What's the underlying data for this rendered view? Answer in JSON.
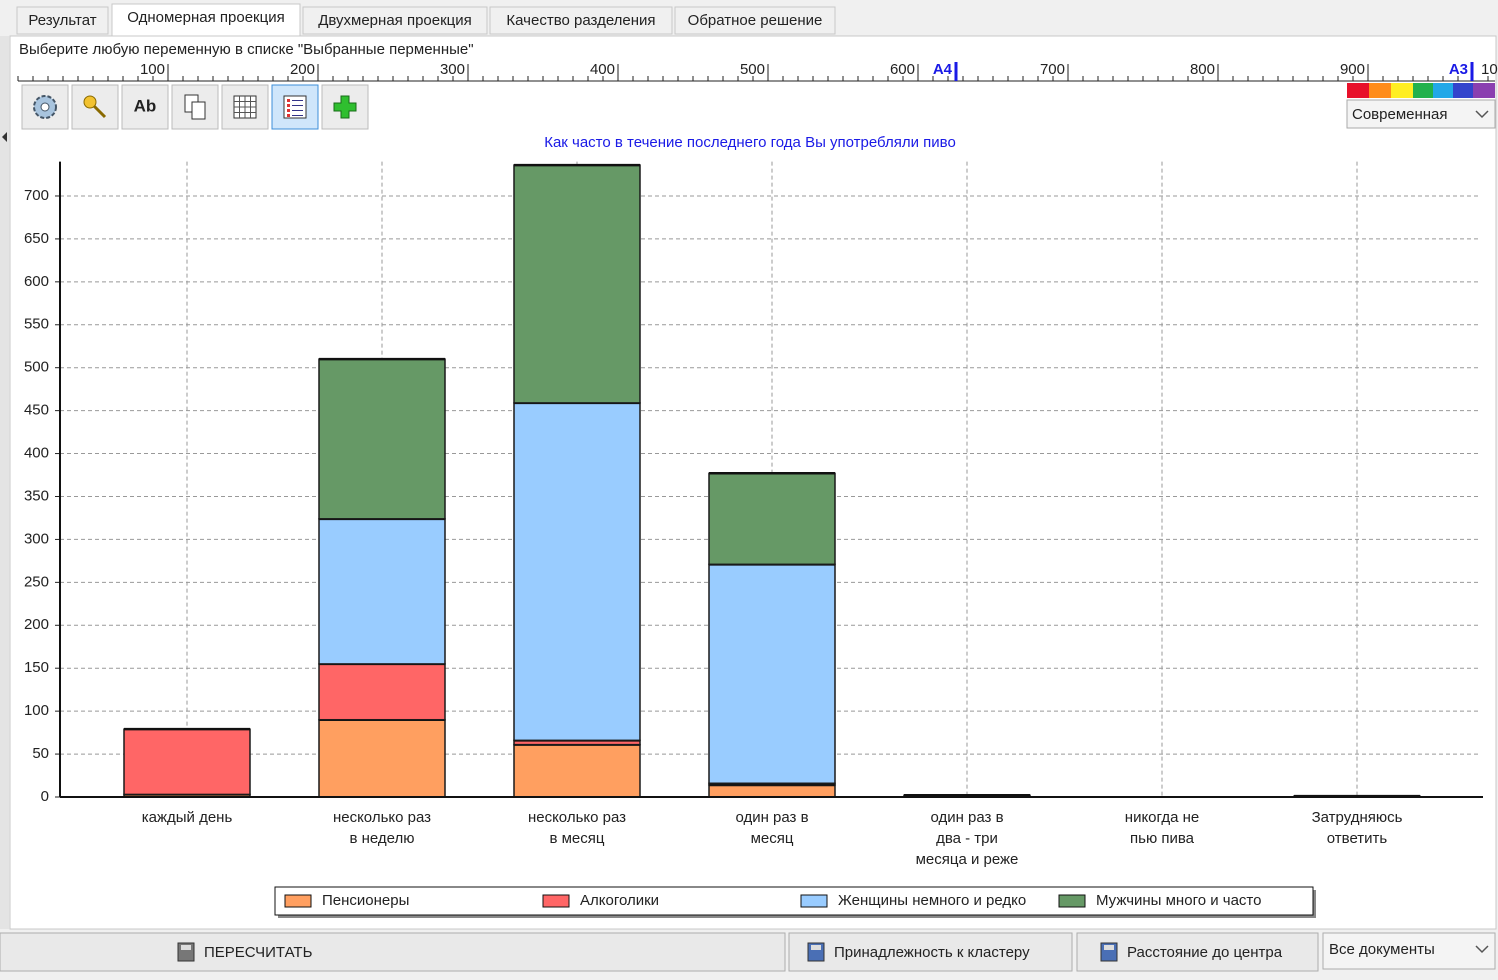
{
  "ui": {
    "tabs": [
      "Результат",
      "Одномерная проекция",
      "Двухмерная проекция",
      "Качество разделения",
      "Обратное решение"
    ],
    "hint": "Выберите любую переменную в списке \"Выбранные перменные\"",
    "ruler": {
      "labels": [
        100,
        200,
        300,
        400,
        500,
        600,
        700,
        800,
        900
      ],
      "a4": "A4",
      "a3": "A3",
      "cut": "10"
    },
    "toolbar_spell": "Ab",
    "palette_combo": "Современная",
    "buttons": {
      "recalc": "ПЕРЕСЧИТАТЬ",
      "membership": "Принадлежность к кластеру",
      "distance": "Расстояние до центра",
      "docs": "Все документы"
    }
  },
  "chart_data": {
    "type": "stacked_bar",
    "title": "Как часто в течение последнего года Вы употребляли пиво",
    "categories": [
      [
        "каждый день"
      ],
      [
        "несколько раз",
        "в неделю"
      ],
      [
        "несколько раз",
        "в месяц"
      ],
      [
        "один раз в",
        "месяц"
      ],
      [
        "один раз в",
        "два - три",
        "месяца и реже"
      ],
      [
        "никогда не",
        "пью пива"
      ],
      [
        "Затрудняюсь",
        "ответить"
      ]
    ],
    "series": [
      {
        "name": "Пенсионеры",
        "color": "#ff9f60",
        "values": [
          3,
          90,
          61,
          14,
          0,
          0,
          0
        ]
      },
      {
        "name": "Алкоголики",
        "color": "#ff6666",
        "values": [
          76,
          65,
          5,
          2,
          0,
          0,
          0
        ]
      },
      {
        "name": "Женщины немного и редко",
        "color": "#99ccff",
        "values": [
          0,
          169,
          393,
          255,
          0,
          0,
          0
        ]
      },
      {
        "name": "Мужчины много и часто",
        "color": "#669966",
        "values": [
          0,
          186,
          277,
          106,
          2,
          0,
          1
        ]
      }
    ],
    "ylim": [
      0,
      740
    ],
    "yticks": [
      0,
      50,
      100,
      150,
      200,
      250,
      300,
      350,
      400,
      450,
      500,
      550,
      600,
      650,
      700
    ],
    "grid": true,
    "legend": "bottom"
  }
}
